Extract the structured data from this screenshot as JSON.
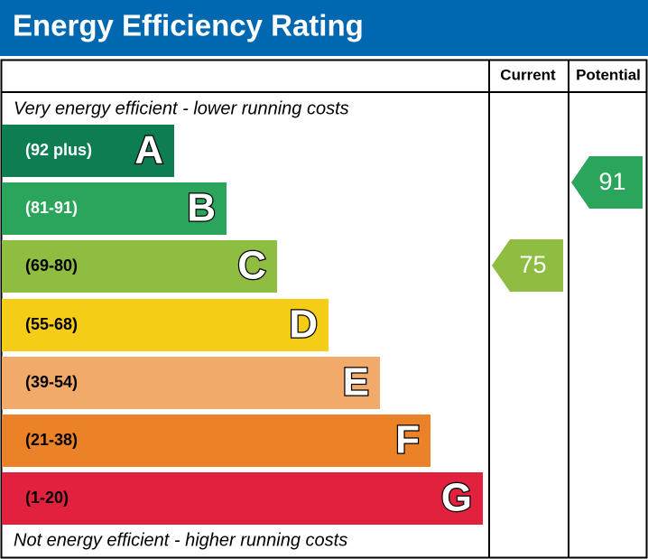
{
  "header": {
    "title": "Energy Efficiency Rating"
  },
  "table": {
    "columns": [
      "Current",
      "Potential"
    ],
    "top_note": "Very energy efficient - lower running costs",
    "bottom_note": "Not energy efficient - higher running costs",
    "bands": [
      {
        "range": "(92 plus)",
        "letter": "A",
        "color": "#0f7d52",
        "text_color": "#ffffff"
      },
      {
        "range": "(81-91)",
        "letter": "B",
        "color": "#2ba55b",
        "text_color": "#ffffff"
      },
      {
        "range": "(69-80)",
        "letter": "C",
        "color": "#8ebd42",
        "text_color": "#000000"
      },
      {
        "range": "(55-68)",
        "letter": "D",
        "color": "#f6cd16",
        "text_color": "#000000"
      },
      {
        "range": "(39-54)",
        "letter": "E",
        "color": "#f2aa6b",
        "text_color": "#000000"
      },
      {
        "range": "(21-38)",
        "letter": "F",
        "color": "#ec8227",
        "text_color": "#000000"
      },
      {
        "range": "(1-20)",
        "letter": "G",
        "color": "#e2213e",
        "text_color": "#000000"
      }
    ],
    "current": {
      "value": 75,
      "color": "#8ebd42"
    },
    "potential": {
      "value": 91,
      "color": "#2ba55b"
    }
  }
}
